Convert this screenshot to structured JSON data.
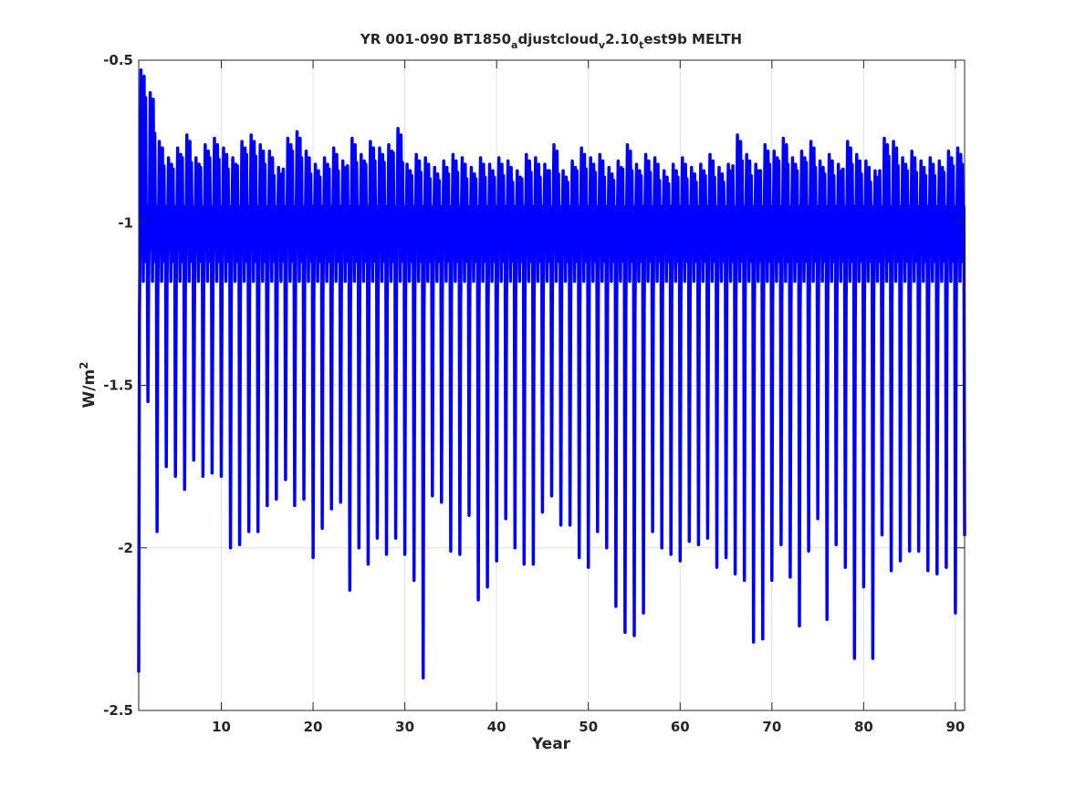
{
  "chart_data": {
    "type": "line",
    "title": {
      "part1": "YR 001-090 BT1850",
      "sub1": "a",
      "part2": "djustcloud",
      "sub2": "v",
      "part3": "2.10",
      "sub3": "t",
      "part4": "est9b MELTH"
    },
    "xlabel": "Year",
    "ylabel": {
      "base": "W/m",
      "sup": "2"
    },
    "xlim": [
      1,
      91
    ],
    "ylim": [
      -2.5,
      -0.5
    ],
    "xticks": [
      10,
      20,
      30,
      40,
      50,
      60,
      70,
      80,
      90
    ],
    "yticks": [
      -2.5,
      -2,
      -1.5,
      -1,
      -0.5
    ],
    "xtick_labels": [
      "10",
      "20",
      "30",
      "40",
      "50",
      "60",
      "70",
      "80",
      "90"
    ],
    "ytick_labels": [
      "-2.5",
      "-2",
      "-1.5",
      "-1",
      "-0.5"
    ],
    "grid": true,
    "series_color": "#0000ff",
    "samples_per_year": 12,
    "annual_peaks": [
      -0.53,
      -0.6,
      -0.75,
      -0.8,
      -0.77,
      -0.73,
      -0.8,
      -0.76,
      -0.74,
      -0.77,
      -0.8,
      -0.75,
      -0.73,
      -0.76,
      -0.78,
      -0.83,
      -0.74,
      -0.72,
      -0.78,
      -0.82,
      -0.8,
      -0.77,
      -0.81,
      -0.74,
      -0.79,
      -0.75,
      -0.77,
      -0.76,
      -0.71,
      -0.82,
      -0.79,
      -0.8,
      -0.83,
      -0.81,
      -0.79,
      -0.8,
      -0.83,
      -0.8,
      -0.82,
      -0.8,
      -0.81,
      -0.84,
      -0.79,
      -0.8,
      -0.82,
      -0.76,
      -0.84,
      -0.81,
      -0.77,
      -0.8,
      -0.79,
      -0.83,
      -0.81,
      -0.76,
      -0.82,
      -0.79,
      -0.8,
      -0.84,
      -0.82,
      -0.8,
      -0.83,
      -0.82,
      -0.79,
      -0.83,
      -0.82,
      -0.73,
      -0.79,
      -0.82,
      -0.76,
      -0.78,
      -0.74,
      -0.8,
      -0.78,
      -0.75,
      -0.81,
      -0.79,
      -0.82,
      -0.75,
      -0.79,
      -0.81,
      -0.84,
      -0.74,
      -0.75,
      -0.8,
      -0.78,
      -0.81,
      -0.8,
      -0.81,
      -0.78,
      -0.77
    ],
    "annual_minima": [
      -2.38,
      -1.55,
      -1.95,
      -1.75,
      -1.78,
      -1.82,
      -1.73,
      -1.78,
      -1.77,
      -1.78,
      -2.0,
      -1.99,
      -1.95,
      -1.95,
      -1.87,
      -1.85,
      -1.79,
      -1.87,
      -1.85,
      -2.03,
      -1.94,
      -1.88,
      -1.86,
      -2.13,
      -2.0,
      -2.05,
      -1.97,
      -2.02,
      -1.97,
      -2.02,
      -2.1,
      -2.4,
      -1.84,
      -1.86,
      -2.01,
      -2.02,
      -1.9,
      -2.16,
      -2.12,
      -2.04,
      -1.91,
      -2.0,
      -2.05,
      -2.05,
      -1.89,
      -1.84,
      -1.93,
      -1.93,
      -2.03,
      -2.06,
      -1.95,
      -2.0,
      -2.18,
      -2.26,
      -2.27,
      -2.2,
      -1.95,
      -2.0,
      -2.02,
      -2.04,
      -1.98,
      -1.99,
      -1.97,
      -2.06,
      -2.03,
      -2.08,
      -2.1,
      -2.29,
      -2.28,
      -2.1,
      -1.99,
      -2.09,
      -2.24,
      -2.01,
      -1.91,
      -2.22,
      -1.99,
      -2.06,
      -2.34,
      -2.12,
      -2.34,
      -1.96,
      -2.07,
      -2.04,
      -2.01,
      -2.01,
      -2.07,
      -2.08,
      -2.06,
      -2.2,
      -1.96
    ]
  }
}
